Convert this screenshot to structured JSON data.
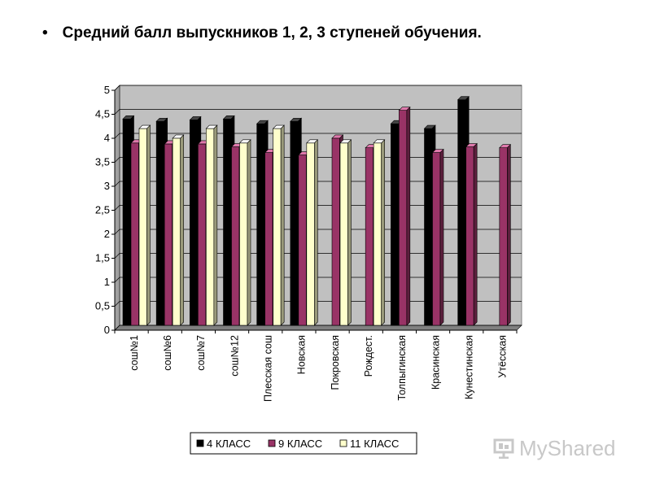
{
  "slide": {
    "bullet": "•",
    "title": "Средний балл выпускников 1, 2, 3 ступеней обучения."
  },
  "watermark": {
    "text": "MyShared"
  },
  "chart_data": {
    "type": "bar",
    "title": "",
    "xlabel": "",
    "ylabel": "",
    "ylim": [
      0,
      5
    ],
    "yticks": [
      "0",
      "0,5",
      "1",
      "1,5",
      "2",
      "2,5",
      "3",
      "3,5",
      "4",
      "4,5",
      "5"
    ],
    "grid": true,
    "legend_position": "bottom",
    "categories": [
      "сош№1",
      "сош№6",
      "сош№7",
      "сош№12",
      "Плесская сош",
      "Новская",
      "Покровская",
      "Рождест.",
      "Толпыгинская",
      "Красинская",
      "Кунестинская",
      "Утёсская"
    ],
    "series": [
      {
        "name": "4 КЛАСС",
        "color": "#000000",
        "values": [
          4.3,
          4.25,
          4.28,
          4.3,
          4.2,
          4.25,
          0,
          0,
          4.2,
          4.1,
          4.7,
          0
        ]
      },
      {
        "name": "9 КЛАСС",
        "color": "#993366",
        "values": [
          3.8,
          3.78,
          3.78,
          3.72,
          3.6,
          3.55,
          3.9,
          3.7,
          4.48,
          3.6,
          3.72,
          3.7
        ]
      },
      {
        "name": "11 КЛАСС",
        "color": "#FFFFCC",
        "values": [
          4.1,
          3.9,
          4.1,
          3.8,
          4.1,
          3.8,
          3.8,
          3.8,
          null,
          null,
          null,
          null
        ]
      }
    ],
    "plot_background": "#C0C0C0"
  }
}
